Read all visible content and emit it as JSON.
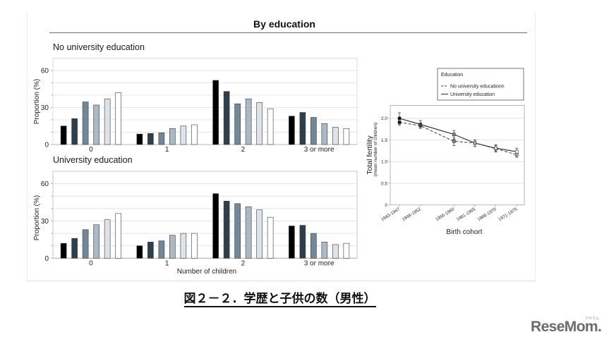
{
  "figure": {
    "title": "By education"
  },
  "caption": "図２－２．学歴と子供の数（男性）",
  "logo": {
    "text": "ReseMom.",
    "kana": "リセマム"
  },
  "chart_data": [
    {
      "id": "no_university",
      "type": "bar",
      "title": "No university education",
      "xlabel": "",
      "ylabel": "Proportion (%)",
      "ylim": [
        0,
        70
      ],
      "yticks": [
        0,
        30,
        60
      ],
      "grid": true,
      "grid_step": 10,
      "legend": "none",
      "categories": [
        "0",
        "1",
        "2",
        "3 or more"
      ],
      "series": [
        {
          "name": "1943-1947",
          "color": "#000000",
          "values": [
            15,
            8.5,
            52,
            23
          ]
        },
        {
          "name": "1948-1952",
          "color": "#2e3f4b",
          "values": [
            21,
            9,
            43,
            26
          ]
        },
        {
          "name": "1956-1960",
          "color": "#71879a",
          "values": [
            34.5,
            9.5,
            33,
            22
          ]
        },
        {
          "name": "1961-1965",
          "color": "#aab9c6",
          "values": [
            32,
            13,
            37,
            17
          ]
        },
        {
          "name": "1966-1970",
          "color": "#dde3e8",
          "values": [
            37,
            15,
            34,
            14
          ]
        },
        {
          "name": "1971-1975",
          "color": "#ffffff",
          "values": [
            42,
            16,
            29,
            13
          ]
        }
      ]
    },
    {
      "id": "university",
      "type": "bar",
      "title": "University education",
      "xlabel": "Number of children",
      "ylabel": "Proportion (%)",
      "ylim": [
        0,
        70
      ],
      "yticks": [
        0,
        30,
        60
      ],
      "grid": true,
      "grid_step": 10,
      "legend": "none",
      "categories": [
        "0",
        "1",
        "2",
        "3 or more"
      ],
      "series": [
        {
          "name": "1943-1947",
          "color": "#000000",
          "values": [
            12,
            10,
            52,
            26
          ]
        },
        {
          "name": "1948-1952",
          "color": "#2e3f4b",
          "values": [
            16,
            13,
            46,
            26.5
          ]
        },
        {
          "name": "1956-1960",
          "color": "#71879a",
          "values": [
            23,
            14,
            44,
            20
          ]
        },
        {
          "name": "1961-1965",
          "color": "#aab9c6",
          "values": [
            27,
            18.5,
            41.5,
            13
          ]
        },
        {
          "name": "1966-1970",
          "color": "#dde3e8",
          "values": [
            31,
            20,
            39,
            11
          ]
        },
        {
          "name": "1971-1975",
          "color": "#ffffff",
          "values": [
            36,
            20,
            33,
            12
          ]
        }
      ]
    },
    {
      "id": "total_fertility",
      "type": "line",
      "title": "",
      "xlabel": "Birth cohort",
      "ylabel": "Total fertility",
      "ylabel_sub": "(mean number of children)",
      "ylim": [
        0,
        2.3
      ],
      "yticks": [
        0,
        0.5,
        1.0,
        1.5,
        2.0
      ],
      "ytick_labels": [
        "0",
        "0.5",
        "1.0",
        "1.5",
        "2.0"
      ],
      "grid": true,
      "categories": [
        "1943-1947",
        "1948-1952",
        "1956-1960",
        "1961-1965",
        "1966-1970",
        "1971-1975"
      ],
      "x": [
        1945,
        1950,
        1958,
        1963,
        1968,
        1973
      ],
      "xlim": [
        1942.8,
        1974.8
      ],
      "marker_colors": [
        "#000000",
        "#2e3f4b",
        "#71879a",
        "#aab9c6",
        "#dde3e8",
        "#ffffff"
      ],
      "legend": {
        "title": "Education",
        "position": "top-right, outside plot"
      },
      "series": [
        {
          "name": "No university educationn",
          "style": "dashed",
          "values": [
            1.91,
            1.83,
            1.47,
            1.43,
            1.3,
            1.16
          ],
          "ci_low": [
            1.84,
            1.77,
            1.37,
            1.35,
            1.22,
            1.1
          ],
          "ci_high": [
            1.98,
            1.89,
            1.56,
            1.5,
            1.37,
            1.22
          ]
        },
        {
          "name": "University education",
          "style": "solid",
          "values": [
            2.0,
            1.86,
            1.63,
            1.43,
            1.31,
            1.23
          ],
          "ci_low": [
            1.87,
            1.77,
            1.52,
            1.35,
            1.24,
            1.15
          ],
          "ci_high": [
            2.13,
            1.95,
            1.72,
            1.5,
            1.39,
            1.31
          ]
        }
      ]
    }
  ]
}
